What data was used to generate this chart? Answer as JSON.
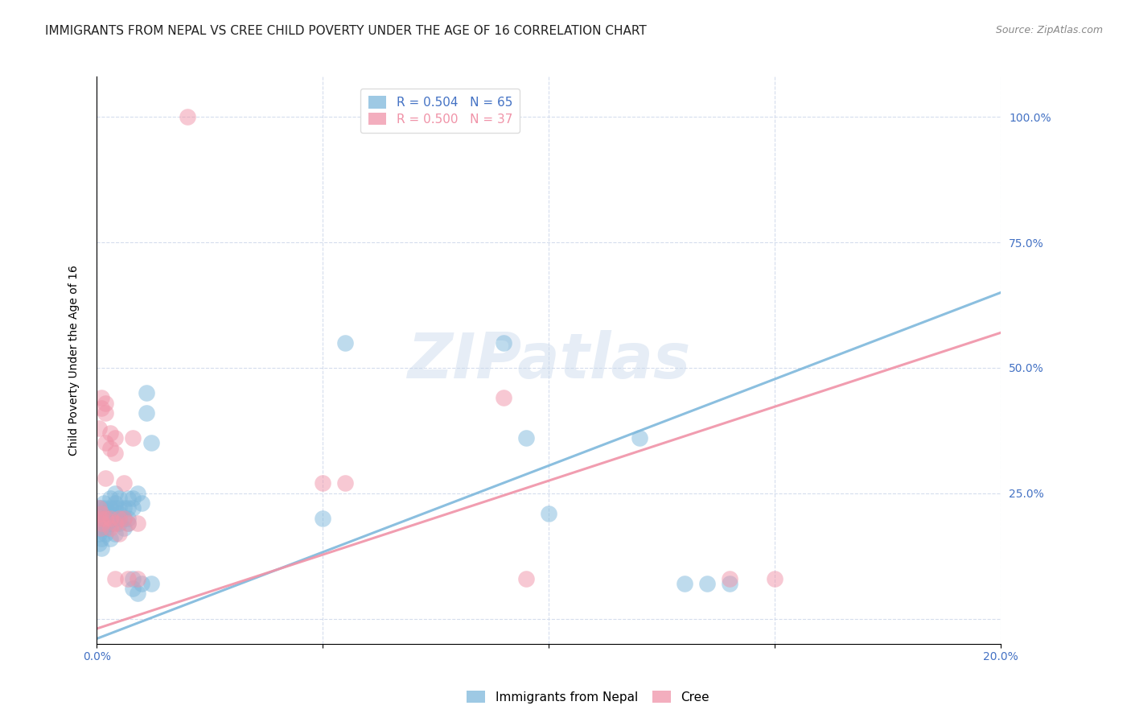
{
  "title": "IMMIGRANTS FROM NEPAL VS CREE CHILD POVERTY UNDER THE AGE OF 16 CORRELATION CHART",
  "source": "Source: ZipAtlas.com",
  "ylabel": "Child Poverty Under the Age of 16",
  "xlim": [
    0.0,
    0.2
  ],
  "ylim": [
    -0.05,
    1.08
  ],
  "legend_entries": [
    {
      "label": "R = 0.504   N = 65",
      "color": "#7eb8dc"
    },
    {
      "label": "R = 0.500   N = 37",
      "color": "#f093a8"
    }
  ],
  "watermark": "ZIPatlas",
  "nepal_color": "#7eb8dc",
  "cree_color": "#f093a8",
  "nepal_trendline_x": [
    0.0,
    0.2
  ],
  "nepal_trendline_y": [
    -0.04,
    0.65
  ],
  "cree_trendline_x": [
    0.0,
    0.2
  ],
  "cree_trendline_y": [
    -0.02,
    0.57
  ],
  "nepal_scatter": [
    [
      0.0005,
      0.2
    ],
    [
      0.0005,
      0.17
    ],
    [
      0.0005,
      0.22
    ],
    [
      0.0005,
      0.15
    ],
    [
      0.0008,
      0.19
    ],
    [
      0.0008,
      0.18
    ],
    [
      0.001,
      0.21
    ],
    [
      0.001,
      0.22
    ],
    [
      0.001,
      0.18
    ],
    [
      0.001,
      0.16
    ],
    [
      0.001,
      0.14
    ],
    [
      0.0012,
      0.2
    ],
    [
      0.0015,
      0.21
    ],
    [
      0.0015,
      0.23
    ],
    [
      0.002,
      0.19
    ],
    [
      0.002,
      0.22
    ],
    [
      0.002,
      0.18
    ],
    [
      0.002,
      0.21
    ],
    [
      0.002,
      0.2
    ],
    [
      0.002,
      0.17
    ],
    [
      0.003,
      0.22
    ],
    [
      0.003,
      0.2
    ],
    [
      0.003,
      0.19
    ],
    [
      0.003,
      0.21
    ],
    [
      0.003,
      0.24
    ],
    [
      0.003,
      0.16
    ],
    [
      0.004,
      0.23
    ],
    [
      0.004,
      0.2
    ],
    [
      0.004,
      0.22
    ],
    [
      0.004,
      0.19
    ],
    [
      0.004,
      0.25
    ],
    [
      0.004,
      0.17
    ],
    [
      0.005,
      0.22
    ],
    [
      0.005,
      0.2
    ],
    [
      0.005,
      0.19
    ],
    [
      0.005,
      0.21
    ],
    [
      0.005,
      0.24
    ],
    [
      0.006,
      0.22
    ],
    [
      0.006,
      0.2
    ],
    [
      0.006,
      0.18
    ],
    [
      0.007,
      0.24
    ],
    [
      0.007,
      0.22
    ],
    [
      0.007,
      0.2
    ],
    [
      0.007,
      0.19
    ],
    [
      0.008,
      0.24
    ],
    [
      0.008,
      0.22
    ],
    [
      0.008,
      0.08
    ],
    [
      0.008,
      0.06
    ],
    [
      0.009,
      0.25
    ],
    [
      0.009,
      0.05
    ],
    [
      0.01,
      0.23
    ],
    [
      0.01,
      0.07
    ],
    [
      0.011,
      0.45
    ],
    [
      0.011,
      0.41
    ],
    [
      0.012,
      0.35
    ],
    [
      0.012,
      0.07
    ],
    [
      0.05,
      0.2
    ],
    [
      0.055,
      0.55
    ],
    [
      0.09,
      0.55
    ],
    [
      0.095,
      0.36
    ],
    [
      0.1,
      0.21
    ],
    [
      0.12,
      0.36
    ],
    [
      0.13,
      0.07
    ],
    [
      0.135,
      0.07
    ],
    [
      0.14,
      0.07
    ]
  ],
  "cree_scatter": [
    [
      0.0005,
      0.38
    ],
    [
      0.0005,
      0.22
    ],
    [
      0.0008,
      0.2
    ],
    [
      0.0008,
      0.18
    ],
    [
      0.001,
      0.44
    ],
    [
      0.001,
      0.42
    ],
    [
      0.001,
      0.21
    ],
    [
      0.001,
      0.19
    ],
    [
      0.002,
      0.43
    ],
    [
      0.002,
      0.41
    ],
    [
      0.002,
      0.35
    ],
    [
      0.002,
      0.28
    ],
    [
      0.002,
      0.2
    ],
    [
      0.003,
      0.37
    ],
    [
      0.003,
      0.34
    ],
    [
      0.003,
      0.2
    ],
    [
      0.003,
      0.18
    ],
    [
      0.004,
      0.36
    ],
    [
      0.004,
      0.33
    ],
    [
      0.004,
      0.19
    ],
    [
      0.004,
      0.08
    ],
    [
      0.005,
      0.2
    ],
    [
      0.005,
      0.17
    ],
    [
      0.006,
      0.27
    ],
    [
      0.006,
      0.2
    ],
    [
      0.007,
      0.19
    ],
    [
      0.007,
      0.08
    ],
    [
      0.008,
      0.36
    ],
    [
      0.009,
      0.19
    ],
    [
      0.009,
      0.08
    ],
    [
      0.05,
      0.27
    ],
    [
      0.055,
      0.27
    ],
    [
      0.09,
      0.44
    ],
    [
      0.095,
      0.08
    ],
    [
      0.14,
      0.08
    ],
    [
      0.15,
      0.08
    ],
    [
      0.02,
      1.0
    ]
  ],
  "grid_color": "#d5dded",
  "background_color": "#ffffff",
  "title_fontsize": 11,
  "axis_label_fontsize": 10,
  "tick_fontsize": 10,
  "legend_fontsize": 11,
  "right_tick_color": "#4472c4",
  "bottom_tick_color": "#4472c4"
}
